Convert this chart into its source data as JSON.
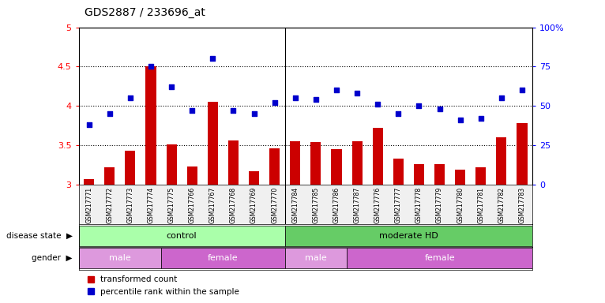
{
  "title": "GDS2887 / 233696_at",
  "samples": [
    "GSM217771",
    "GSM217772",
    "GSM217773",
    "GSM217774",
    "GSM217775",
    "GSM217766",
    "GSM217767",
    "GSM217768",
    "GSM217769",
    "GSM217770",
    "GSM217784",
    "GSM217785",
    "GSM217786",
    "GSM217787",
    "GSM217776",
    "GSM217777",
    "GSM217778",
    "GSM217779",
    "GSM217780",
    "GSM217781",
    "GSM217782",
    "GSM217783"
  ],
  "bar_values": [
    3.07,
    3.22,
    3.43,
    4.5,
    3.51,
    3.23,
    4.05,
    3.56,
    3.17,
    3.46,
    3.55,
    3.54,
    3.45,
    3.55,
    3.72,
    3.33,
    3.26,
    3.26,
    3.19,
    3.22,
    3.6,
    3.78
  ],
  "dot_percentile": [
    38,
    45,
    55,
    75,
    62,
    47,
    80,
    47,
    45,
    52,
    55,
    54,
    60,
    58,
    51,
    45,
    50,
    48,
    41,
    42,
    55,
    60
  ],
  "ylim": [
    3.0,
    5.0
  ],
  "yticks": [
    3.0,
    3.5,
    4.0,
    4.5,
    5.0
  ],
  "ytick_labels": [
    "3",
    "3.5",
    "4",
    "4.5",
    "5"
  ],
  "y2lim": [
    0,
    100
  ],
  "y2ticks": [
    0,
    25,
    50,
    75,
    100
  ],
  "y2tick_labels": [
    "0",
    "25",
    "50",
    "75",
    "100%"
  ],
  "bar_color": "#cc0000",
  "dot_color": "#0000cc",
  "bar_bottom": 3.0,
  "disease_state_groups": [
    {
      "label": "control",
      "start": 0,
      "end": 10,
      "color": "#aaffaa"
    },
    {
      "label": "moderate HD",
      "start": 10,
      "end": 22,
      "color": "#66cc66"
    }
  ],
  "gender_groups": [
    {
      "label": "male",
      "start": 0,
      "end": 4,
      "color": "#dd99dd"
    },
    {
      "label": "female",
      "start": 4,
      "end": 10,
      "color": "#cc66cc"
    },
    {
      "label": "male",
      "start": 10,
      "end": 13,
      "color": "#dd99dd"
    },
    {
      "label": "female",
      "start": 13,
      "end": 22,
      "color": "#cc66cc"
    }
  ],
  "xlabel_disease": "disease state",
  "xlabel_gender": "gender",
  "legend_bar": "transformed count",
  "legend_dot": "percentile rank within the sample",
  "bg_color": "#f0f0f0"
}
